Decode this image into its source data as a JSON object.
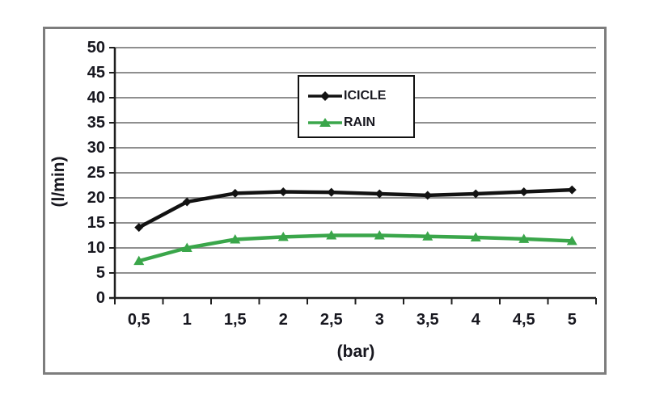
{
  "colors": {
    "background": "#ffffff",
    "figure_border": "#7d7d7d",
    "grid": "#8f8f8f",
    "axis": "#1f1f1f",
    "text": "#17171f",
    "legend_border": "#111111"
  },
  "chart_data": {
    "type": "line",
    "title": "",
    "xlabel": "(bar)",
    "ylabel": "(l/min)",
    "x_values": [
      0.5,
      1,
      1.5,
      2,
      2.5,
      3,
      3.5,
      4,
      4.5,
      5
    ],
    "x_tick_labels": [
      "0,5",
      "1",
      "1,5",
      "2",
      "2,5",
      "3",
      "3,5",
      "4",
      "4,5",
      "5"
    ],
    "ylim": [
      0,
      50
    ],
    "ytick_step": 5,
    "y_tick_labels": [
      "0",
      "5",
      "10",
      "15",
      "20",
      "25",
      "30",
      "35",
      "40",
      "45",
      "50"
    ],
    "grid": "horizontal",
    "legend_position": "top-center",
    "series": [
      {
        "name": "ICICLE",
        "color": "#121212",
        "marker": "diamond",
        "values": [
          14.1,
          19.2,
          20.9,
          21.2,
          21.1,
          20.8,
          20.5,
          20.8,
          21.2,
          21.6
        ]
      },
      {
        "name": "RAIN",
        "color": "#3aa64a",
        "marker": "triangle",
        "values": [
          7.4,
          10.0,
          11.7,
          12.2,
          12.5,
          12.5,
          12.3,
          12.1,
          11.8,
          11.4
        ]
      }
    ]
  }
}
